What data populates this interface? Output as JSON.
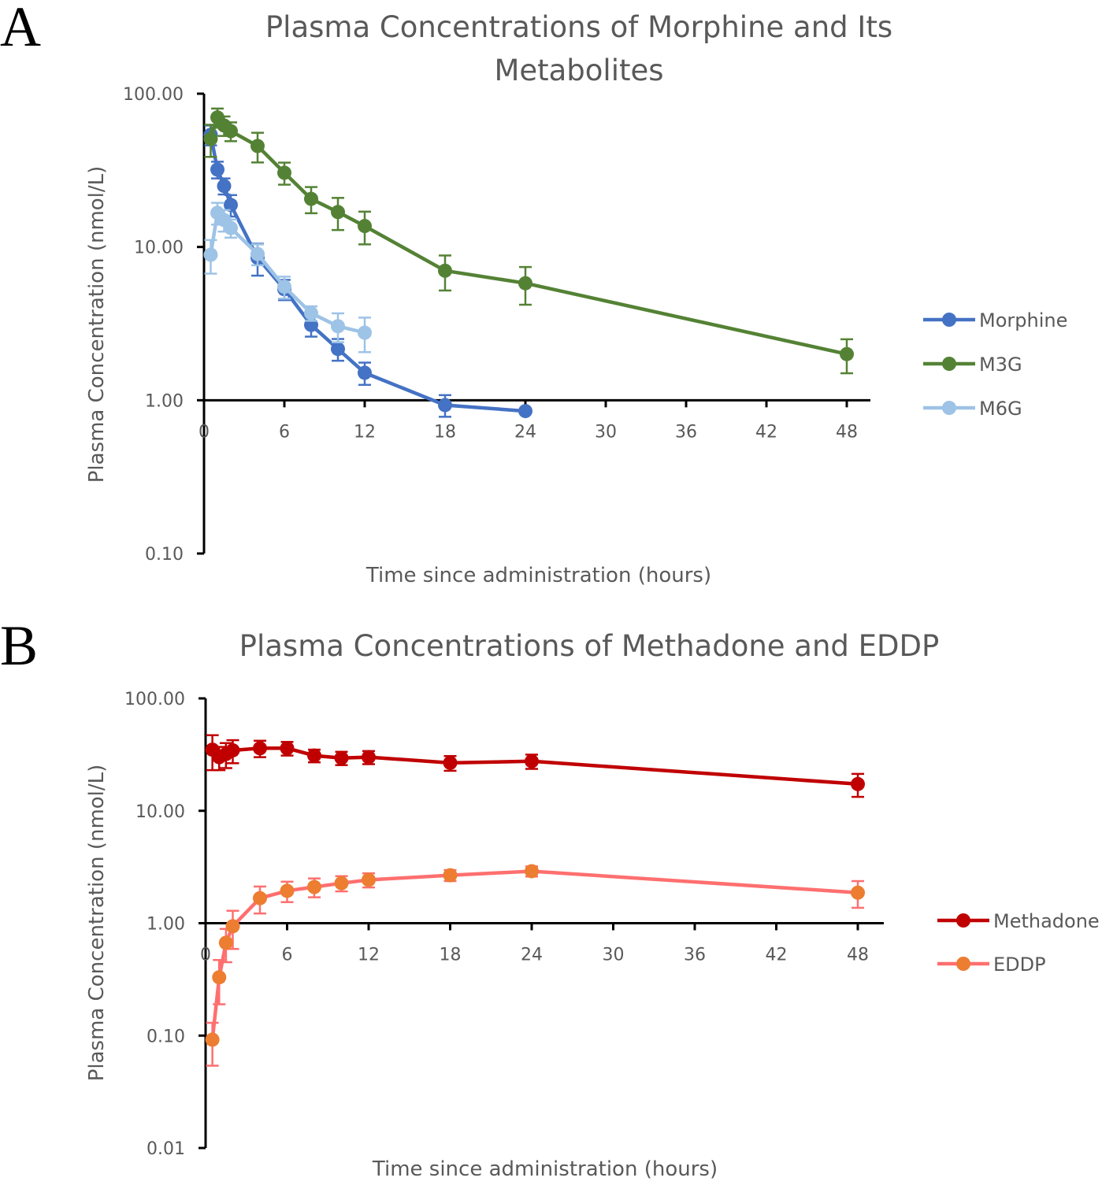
{
  "chart_data": [
    {
      "type": "line",
      "panel_label": "A",
      "title": "Plasma Concentrations of Morphine and Its Metabolites",
      "title_lines": [
        "Plasma Concentrations of Morphine and Its",
        "Metabolites"
      ],
      "xlabel": "Time since administration (hours)",
      "ylabel": "Plasma Concentration (nmol/L)",
      "yscale": "log",
      "ylim": [
        0.1,
        100
      ],
      "xlim": [
        0,
        48
      ],
      "xticks": [
        0,
        6,
        12,
        18,
        24,
        30,
        36,
        42,
        48
      ],
      "yticks": [
        0.1,
        1,
        10,
        100
      ],
      "ytick_labels": [
        "0.10",
        "1.00",
        "10.00",
        "100.00"
      ],
      "xaxis_crosses_y": 1,
      "legend_position": "right",
      "series": [
        {
          "name": "Morphine",
          "color": "#4472C4",
          "x": [
            0.5,
            1,
            1.5,
            2,
            4,
            6,
            8,
            10,
            12,
            18,
            24
          ],
          "y": [
            54,
            32,
            25,
            18.8,
            8.5,
            5.3,
            3.1,
            2.16,
            1.51,
            0.93,
            0.85
          ],
          "err": [
            8,
            4,
            3,
            3,
            2,
            0.8,
            0.5,
            0.35,
            0.25,
            0.15,
            0
          ]
        },
        {
          "name": "M3G",
          "color": "#548235",
          "x": [
            0.5,
            1,
            1.5,
            2,
            4,
            6,
            8,
            10,
            12,
            18,
            24,
            48
          ],
          "y": [
            50.7,
            70,
            62,
            57,
            45.6,
            30.5,
            20.6,
            16.9,
            13.7,
            7.0,
            5.8,
            2.0
          ],
          "err": [
            12,
            10,
            9,
            8,
            10,
            5,
            4,
            4,
            3.3,
            1.8,
            1.6,
            0.5
          ]
        },
        {
          "name": "M6G",
          "color": "#9DC3E6",
          "x": [
            0.5,
            1,
            1.5,
            2,
            4,
            6,
            8,
            10,
            12
          ],
          "y": [
            8.9,
            16.7,
            15,
            13.3,
            9.0,
            5.5,
            3.7,
            3.04,
            2.76
          ],
          "err": [
            2.2,
            2.7,
            2.4,
            1.8,
            1.4,
            0.9,
            0.4,
            0.65,
            0.7
          ]
        }
      ]
    },
    {
      "type": "line",
      "panel_label": "B",
      "title": "Plasma Concentrations of Methadone and EDDP",
      "title_lines": [
        "Plasma Concentrations of Methadone and EDDP"
      ],
      "xlabel": "Time since administration (hours)",
      "ylabel": "Plasma Concentration (nmol/L)",
      "yscale": "log",
      "ylim": [
        0.01,
        100
      ],
      "xlim": [
        0,
        48
      ],
      "xticks": [
        0,
        6,
        12,
        18,
        24,
        30,
        36,
        42,
        48
      ],
      "yticks": [
        0.01,
        0.1,
        1,
        10,
        100
      ],
      "ytick_labels": [
        "0.01",
        "0.10",
        "1.00",
        "10.00",
        "100.00"
      ],
      "xaxis_crosses_y": 1,
      "legend_position": "right",
      "series": [
        {
          "name": "Methadone",
          "color": "#C00000",
          "line_color": "#C00000",
          "x": [
            0.5,
            1,
            1.5,
            2,
            4,
            6,
            8,
            10,
            12,
            18,
            24,
            48
          ],
          "y": [
            35,
            30,
            32,
            34.5,
            36,
            36,
            31,
            29.5,
            30,
            26.7,
            27.6,
            17.3
          ],
          "err": [
            12,
            7,
            8,
            8,
            6,
            5,
            4,
            4,
            4,
            4,
            4,
            4
          ]
        },
        {
          "name": "EDDP",
          "color": "#ED7D31",
          "line_color": "#FF6F6F",
          "x": [
            0.5,
            1,
            1.5,
            2,
            4,
            6,
            8,
            10,
            12,
            18,
            24,
            48
          ],
          "y": [
            0.092,
            0.33,
            0.67,
            0.94,
            1.67,
            1.94,
            2.1,
            2.27,
            2.43,
            2.67,
            2.9,
            1.87
          ],
          "err": [
            0.038,
            0.14,
            0.22,
            0.35,
            0.45,
            0.4,
            0.4,
            0.35,
            0.35,
            0.3,
            0.3,
            0.5
          ]
        }
      ]
    }
  ]
}
